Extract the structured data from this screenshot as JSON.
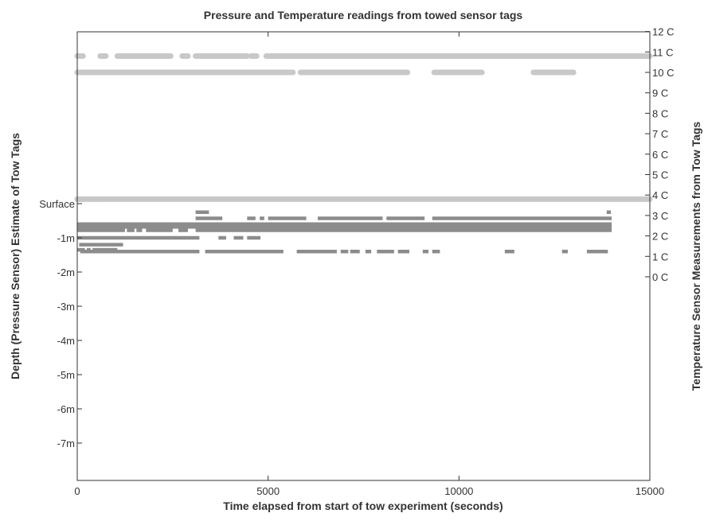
{
  "chart_data": {
    "type": "scatter",
    "title": "Pressure and Temperature readings from towed sensor tags",
    "xlabel": "Time elapsed from start of tow experiment (seconds)",
    "ylabel_left": "Depth (Pressure Sensor) Estimate of Tow Tags",
    "ylabel_right": "Temperature Sensor Measurements from Tow Tags",
    "xlim": [
      0,
      15000
    ],
    "x_ticks": [
      0,
      5000,
      10000,
      15000
    ],
    "x_tick_labels": [
      "0",
      "5000",
      "10000",
      "15000"
    ],
    "depth_ylim": [
      -8.5,
      0.5
    ],
    "depth_ticks": [
      0,
      -1,
      -2,
      -3,
      -4,
      -5,
      -6,
      -7
    ],
    "depth_tick_labels": [
      "Surface",
      "-1m",
      "-2m",
      "-3m",
      "-4m",
      "-5m",
      "-6m",
      "-7m"
    ],
    "temperature_ticks": [
      0,
      1,
      2,
      3,
      4,
      5,
      6,
      7,
      8,
      9,
      10,
      11,
      12
    ],
    "temperature_tick_labels": [
      "0  C",
      "1  C",
      "2  C",
      "3  C",
      "4  C",
      "5  C",
      "6  C",
      "7  C",
      "8  C",
      "9  C",
      "10  C",
      "11  C",
      "12  C"
    ],
    "colors": {
      "pressure": "#8c8c8c",
      "temperature": "#c8c8c8",
      "axis": "#333333"
    },
    "series": [
      {
        "axis": "right",
        "segments": [
          [
            0,
            15000,
            3.8
          ]
        ]
      },
      {
        "axis": "left",
        "segments": [
          [
            3100,
            3450,
            -0.25
          ],
          [
            13870,
            13980,
            -0.25
          ],
          [
            3100,
            3800,
            -0.43
          ],
          [
            4450,
            4670,
            -0.43
          ],
          [
            4780,
            4900,
            -0.43
          ],
          [
            5000,
            6000,
            -0.43
          ],
          [
            6300,
            8000,
            -0.43
          ],
          [
            8100,
            9100,
            -0.43
          ],
          [
            9300,
            14000,
            -0.43
          ],
          [
            0,
            14000,
            -0.6
          ],
          [
            0,
            14000,
            -0.68
          ],
          [
            0,
            1250,
            -0.78
          ],
          [
            1300,
            1500,
            -0.78
          ],
          [
            1550,
            1700,
            -0.78
          ],
          [
            1800,
            2500,
            -0.78
          ],
          [
            2650,
            2900,
            -0.78
          ],
          [
            3100,
            14000,
            -0.78
          ],
          [
            0,
            3200,
            -1.0
          ],
          [
            3700,
            3900,
            -1.0
          ],
          [
            4100,
            4350,
            -1.0
          ],
          [
            4450,
            4800,
            -1.0
          ],
          [
            50,
            1200,
            -1.2
          ],
          [
            0,
            200,
            -1.35
          ],
          [
            250,
            350,
            -1.35
          ],
          [
            400,
            1050,
            -1.35
          ],
          [
            80,
            3200,
            -1.4
          ],
          [
            3350,
            5400,
            -1.4
          ],
          [
            5750,
            6800,
            -1.4
          ],
          [
            6900,
            7100,
            -1.4
          ],
          [
            7150,
            7400,
            -1.4
          ],
          [
            7550,
            7700,
            -1.4
          ],
          [
            7850,
            8300,
            -1.4
          ],
          [
            8400,
            8700,
            -1.4
          ],
          [
            9050,
            9200,
            -1.4
          ],
          [
            9300,
            9500,
            -1.4
          ],
          [
            11200,
            11450,
            -1.4
          ],
          [
            12700,
            12850,
            -1.4
          ],
          [
            13350,
            13900,
            -1.4
          ]
        ]
      },
      {
        "axis": "right",
        "segments": [
          [
            0,
            5650,
            10.0
          ],
          [
            5850,
            8650,
            10.0
          ],
          [
            9350,
            10600,
            10.0
          ],
          [
            11950,
            13000,
            10.0
          ],
          [
            0,
            150,
            10.8
          ],
          [
            600,
            750,
            10.8
          ],
          [
            1050,
            2450,
            10.8
          ],
          [
            2750,
            2900,
            10.8
          ],
          [
            3100,
            4450,
            10.8
          ],
          [
            4550,
            4700,
            10.8
          ],
          [
            4950,
            15000,
            10.8
          ]
        ]
      }
    ]
  }
}
